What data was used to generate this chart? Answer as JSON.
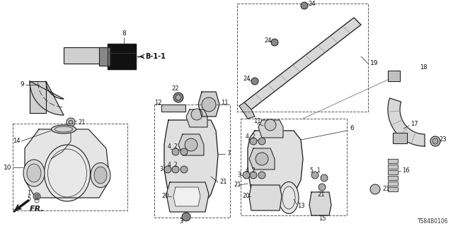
{
  "bg_color": "#ffffff",
  "line_color": "#1a1a1a",
  "part_code": "TS84B0106",
  "figsize": [
    6.4,
    3.2
  ],
  "dpi": 100
}
